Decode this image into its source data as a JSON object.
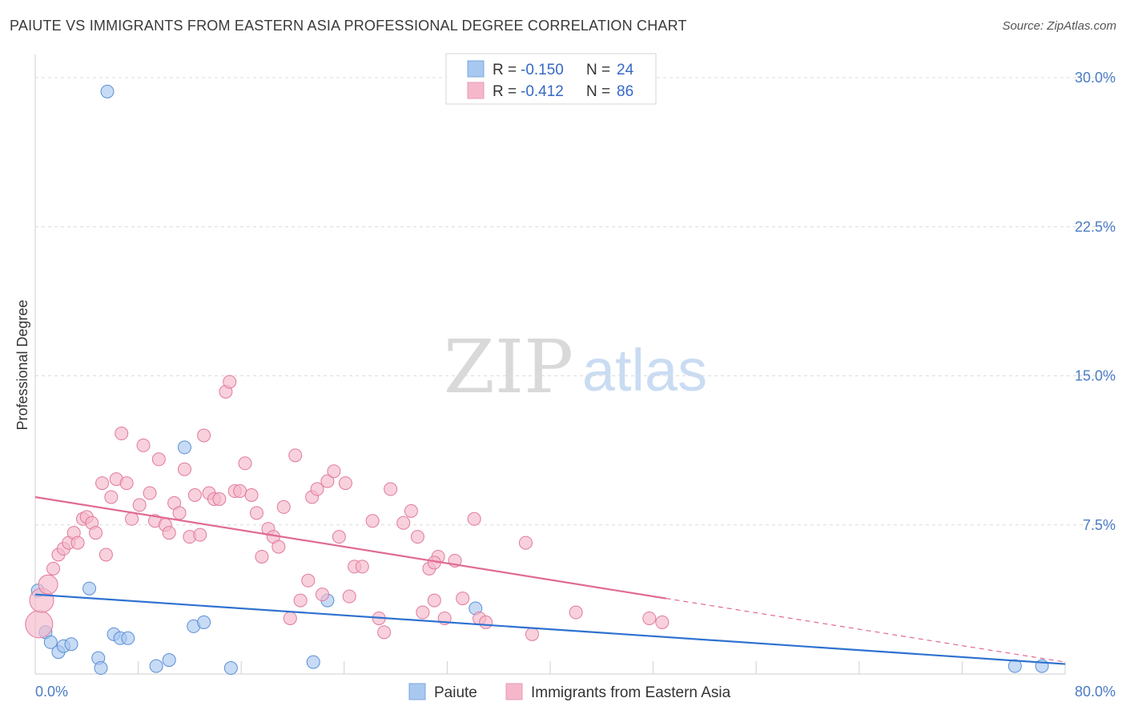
{
  "header": {
    "title": "PAIUTE VS IMMIGRANTS FROM EASTERN ASIA PROFESSIONAL DEGREE CORRELATION CHART",
    "source": "Source: ZipAtlas.com"
  },
  "watermark": {
    "zip": "ZIP",
    "atlas": "atlas"
  },
  "legend": {
    "rows": [
      {
        "r_label": "R =",
        "r_value": "-0.150",
        "n_label": "N =",
        "n_value": "24",
        "color": "#a9c8f0"
      },
      {
        "r_label": "R =",
        "r_value": "-0.412",
        "n_label": "N =",
        "n_value": "86",
        "color": "#f5b8cb"
      }
    ]
  },
  "bottom_legend": [
    {
      "label": "Paiute",
      "color": "#a9c8f0"
    },
    {
      "label": "Immigrants from Eastern Asia",
      "color": "#f5b8cb"
    }
  ],
  "chart_data": {
    "type": "scatter",
    "title": "PAIUTE VS IMMIGRANTS FROM EASTERN ASIA PROFESSIONAL DEGREE CORRELATION CHART",
    "xlabel": "",
    "ylabel": "Professional Degree",
    "xlim": [
      0,
      80
    ],
    "ylim": [
      0,
      30
    ],
    "x_tick_labels": [
      "0.0%",
      "80.0%"
    ],
    "y_ticks": [
      7.5,
      15.0,
      22.5,
      30.0
    ],
    "y_tick_labels": [
      "7.5%",
      "15.0%",
      "22.5%",
      "30.0%"
    ],
    "grid": true,
    "series": [
      {
        "name": "Paiute",
        "color": "#a9c8f0",
        "stroke": "#5b8fd6",
        "trend": {
          "x0": 0,
          "y0": 4.0,
          "x1": 80,
          "y1": 0.5,
          "color": "#2f72d0"
        },
        "points": [
          [
            5.6,
            29.3
          ],
          [
            0.2,
            4.2
          ],
          [
            0.8,
            2.1
          ],
          [
            1.2,
            1.6
          ],
          [
            1.8,
            1.1
          ],
          [
            2.2,
            1.4
          ],
          [
            2.8,
            1.5
          ],
          [
            4.2,
            4.3
          ],
          [
            4.9,
            0.8
          ],
          [
            5.1,
            0.3
          ],
          [
            6.1,
            2.0
          ],
          [
            6.6,
            1.8
          ],
          [
            7.2,
            1.8
          ],
          [
            9.4,
            0.4
          ],
          [
            10.4,
            0.7
          ],
          [
            11.6,
            11.4
          ],
          [
            12.3,
            2.4
          ],
          [
            13.1,
            2.6
          ],
          [
            15.2,
            0.3
          ],
          [
            21.6,
            0.6
          ],
          [
            22.7,
            3.7
          ],
          [
            34.2,
            3.3
          ],
          [
            76.1,
            0.4
          ],
          [
            78.2,
            0.4
          ]
        ]
      },
      {
        "name": "Immigrants from Eastern Asia",
        "color": "#f5b8cb",
        "stroke": "#e07a9c",
        "trend": {
          "x0": 0,
          "y0": 8.9,
          "x1": 49.0,
          "y1": 3.8,
          "dash_x1": 80,
          "dash_y1": 0.6,
          "color": "#e06b93"
        },
        "points": [
          [
            0.3,
            2.5
          ],
          [
            0.5,
            3.7
          ],
          [
            1.0,
            4.5
          ],
          [
            1.4,
            5.3
          ],
          [
            1.8,
            6.0
          ],
          [
            2.2,
            6.3
          ],
          [
            2.6,
            6.6
          ],
          [
            3.0,
            7.1
          ],
          [
            3.3,
            6.6
          ],
          [
            3.7,
            7.8
          ],
          [
            4.0,
            7.9
          ],
          [
            4.4,
            7.6
          ],
          [
            4.7,
            7.1
          ],
          [
            5.2,
            9.6
          ],
          [
            5.5,
            6.0
          ],
          [
            5.9,
            8.9
          ],
          [
            6.3,
            9.8
          ],
          [
            6.7,
            12.1
          ],
          [
            7.1,
            9.6
          ],
          [
            7.5,
            7.8
          ],
          [
            8.1,
            8.5
          ],
          [
            8.4,
            11.5
          ],
          [
            8.9,
            9.1
          ],
          [
            9.3,
            7.7
          ],
          [
            9.6,
            10.8
          ],
          [
            10.1,
            7.5
          ],
          [
            10.4,
            7.1
          ],
          [
            10.8,
            8.6
          ],
          [
            11.2,
            8.1
          ],
          [
            11.6,
            10.3
          ],
          [
            12.0,
            6.9
          ],
          [
            12.4,
            9.0
          ],
          [
            12.8,
            7.0
          ],
          [
            13.1,
            12.0
          ],
          [
            13.5,
            9.1
          ],
          [
            13.9,
            8.8
          ],
          [
            14.3,
            8.8
          ],
          [
            14.8,
            14.2
          ],
          [
            15.1,
            14.7
          ],
          [
            15.5,
            9.2
          ],
          [
            15.9,
            9.2
          ],
          [
            16.3,
            10.6
          ],
          [
            16.8,
            9.0
          ],
          [
            17.2,
            8.1
          ],
          [
            17.6,
            5.9
          ],
          [
            18.1,
            7.3
          ],
          [
            18.5,
            6.9
          ],
          [
            18.9,
            6.4
          ],
          [
            19.3,
            8.4
          ],
          [
            19.8,
            2.8
          ],
          [
            20.2,
            11.0
          ],
          [
            20.6,
            3.7
          ],
          [
            21.2,
            4.7
          ],
          [
            21.5,
            8.9
          ],
          [
            21.9,
            9.3
          ],
          [
            22.3,
            4.0
          ],
          [
            22.7,
            9.7
          ],
          [
            23.2,
            10.2
          ],
          [
            23.6,
            6.9
          ],
          [
            24.1,
            9.6
          ],
          [
            24.4,
            3.9
          ],
          [
            24.8,
            5.4
          ],
          [
            25.4,
            5.4
          ],
          [
            26.2,
            7.7
          ],
          [
            26.7,
            2.8
          ],
          [
            27.1,
            2.1
          ],
          [
            27.6,
            9.3
          ],
          [
            28.6,
            7.6
          ],
          [
            29.2,
            8.2
          ],
          [
            29.7,
            6.9
          ],
          [
            30.1,
            3.1
          ],
          [
            30.6,
            5.3
          ],
          [
            31.0,
            3.7
          ],
          [
            31.3,
            5.9
          ],
          [
            31.8,
            2.8
          ],
          [
            32.6,
            5.7
          ],
          [
            33.2,
            3.8
          ],
          [
            34.1,
            7.8
          ],
          [
            34.5,
            2.8
          ],
          [
            35.0,
            2.6
          ],
          [
            38.1,
            6.6
          ],
          [
            38.6,
            2.0
          ],
          [
            42.0,
            3.1
          ],
          [
            47.7,
            2.8
          ],
          [
            48.7,
            2.6
          ],
          [
            31.0,
            5.6
          ]
        ]
      }
    ]
  }
}
